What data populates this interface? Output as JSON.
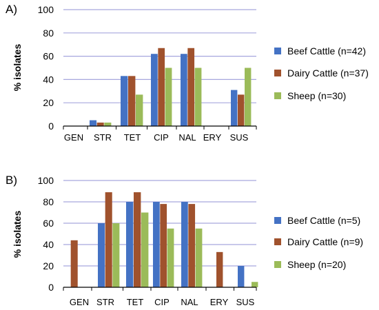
{
  "chart_data": [
    {
      "panel_label": "A)",
      "type": "bar",
      "ylabel": "% isolates",
      "ylim": [
        0,
        100
      ],
      "yticks": [
        0,
        20,
        40,
        60,
        80,
        100
      ],
      "grid": true,
      "legend_position": "right",
      "categories": [
        "GEN",
        "STR",
        "TET",
        "CIP",
        "NAL",
        "ERY",
        "SUS"
      ],
      "series": [
        {
          "name": "Beef Cattle (n=42)",
          "color": "#4472C4",
          "values": [
            0,
            5,
            43,
            62,
            62,
            0,
            31
          ]
        },
        {
          "name": "Dairy Cattle (n=37)",
          "color": "#A0522D",
          "values": [
            0,
            3,
            43,
            67,
            67,
            0,
            27
          ]
        },
        {
          "name": "Sheep (n=30)",
          "color": "#9BBB59",
          "values": [
            0,
            3,
            27,
            50,
            50,
            0,
            50
          ]
        }
      ]
    },
    {
      "panel_label": "B)",
      "type": "bar",
      "ylabel": "% isolates",
      "ylim": [
        0,
        100
      ],
      "yticks": [
        0,
        20,
        40,
        60,
        80,
        100
      ],
      "grid": true,
      "legend_position": "right",
      "categories": [
        "GEN",
        "STR",
        "TET",
        "CIP",
        "NAL",
        "ERY",
        "SUS"
      ],
      "series": [
        {
          "name": "Beef Cattle (n=5)",
          "color": "#4472C4",
          "values": [
            0,
            60,
            80,
            80,
            80,
            0,
            20
          ]
        },
        {
          "name": "Dairy Cattle (n=9)",
          "color": "#A0522D",
          "values": [
            44,
            89,
            89,
            78,
            78,
            33,
            0
          ]
        },
        {
          "name": "Sheep (n=20)",
          "color": "#9BBB59",
          "values": [
            0,
            60,
            70,
            55,
            55,
            0,
            5
          ]
        }
      ]
    }
  ]
}
